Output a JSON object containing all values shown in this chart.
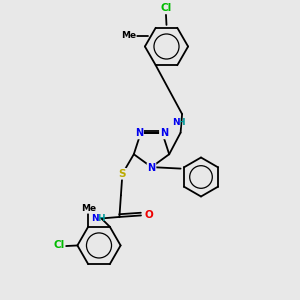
{
  "bg_color": "#e8e8e8",
  "atom_colors": {
    "C": "#000000",
    "N": "#0000ee",
    "S": "#bbaa00",
    "O": "#ee0000",
    "Cl": "#00bb00",
    "H": "#009999"
  },
  "bond_color": "#000000",
  "bond_lw": 1.3,
  "ring_lw": 1.3
}
